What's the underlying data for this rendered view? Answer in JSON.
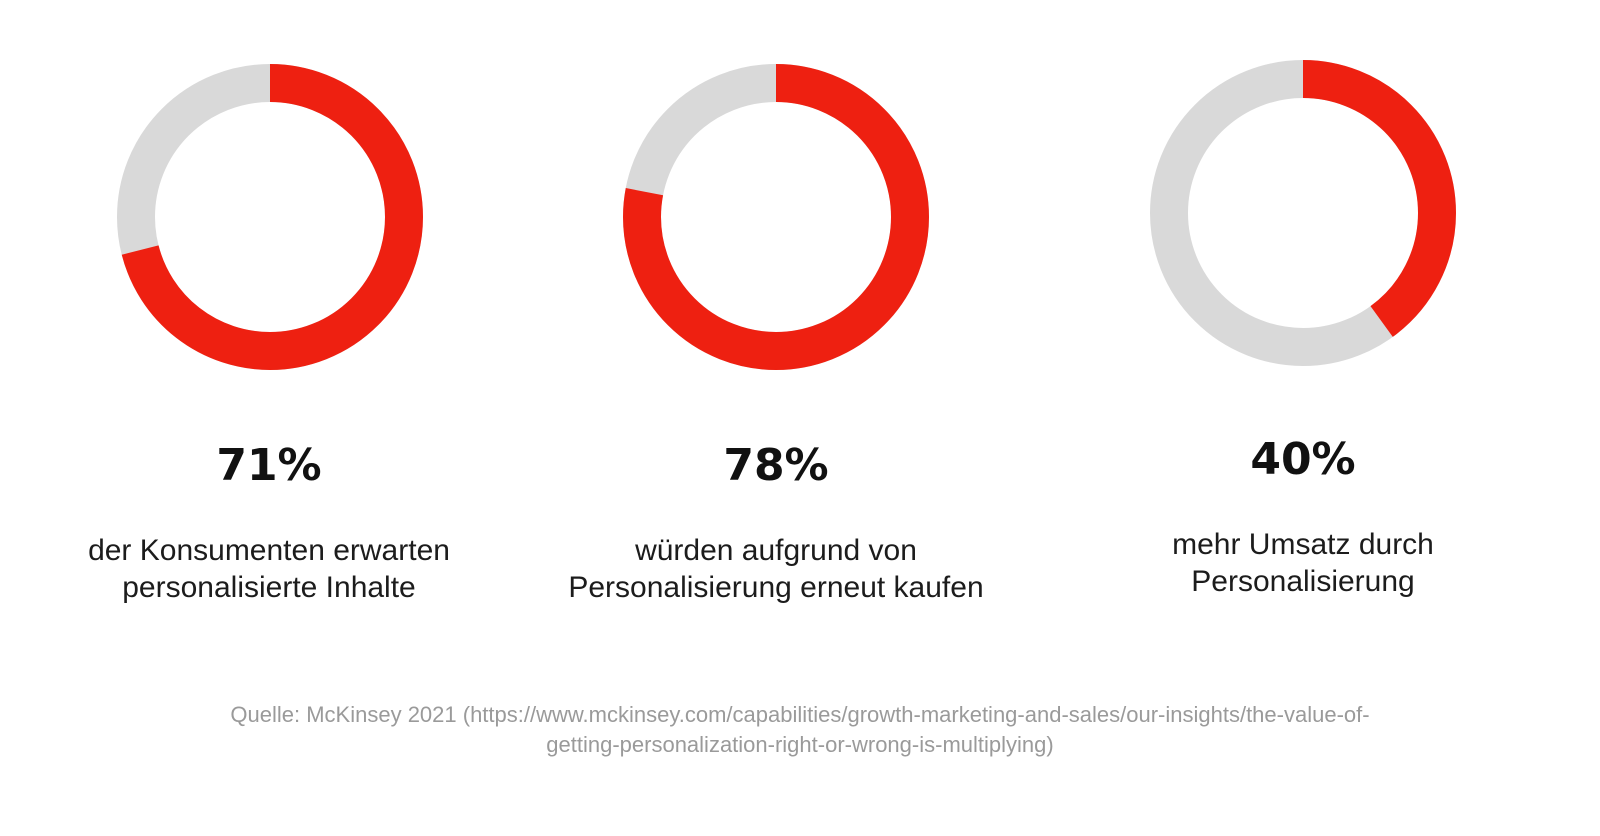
{
  "chart_data": [
    {
      "type": "pie",
      "values": [
        71,
        29
      ],
      "categories": [
        "71%",
        ""
      ],
      "label": "71%",
      "caption": [
        "der Konsumenten erwarten",
        "personalisierte Inhalte"
      ]
    },
    {
      "type": "pie",
      "values": [
        78,
        22
      ],
      "categories": [
        "78%",
        ""
      ],
      "label": "78%",
      "caption": [
        "würden aufgrund von",
        "Personalisierung erneut kaufen"
      ]
    },
    {
      "type": "pie",
      "values": [
        40,
        60
      ],
      "categories": [
        "40%",
        ""
      ],
      "label": "40%",
      "caption": [
        "mehr Umsatz durch",
        "Personalisierung"
      ]
    }
  ],
  "colors": {
    "highlight": "#ee2011",
    "remainder": "#d9d9d9",
    "value_text": "#111111",
    "caption_text": "#1c1c1c",
    "source_text": "#9a9a9a"
  },
  "source": {
    "line1": "Quelle: McKinsey 2021 (https://www.mckinsey.com/capabilities/growth-marketing-and-sales/our-insights/the-value-of-",
    "line2": "getting-personalization-right-or-wrong-is-multiplying)"
  }
}
